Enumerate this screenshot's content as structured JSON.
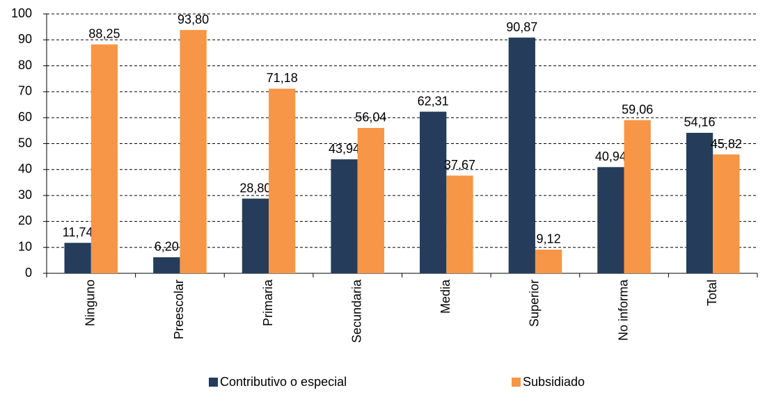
{
  "chart_data": {
    "type": "bar",
    "categories": [
      "Ninguno",
      "Preescolar",
      "Primaria",
      "Secundaria",
      "Media",
      "Superior",
      "No informa",
      "Total"
    ],
    "series": [
      {
        "name": "Contributivo o especial",
        "color": "#253d5b",
        "values": [
          11.74,
          6.2,
          28.8,
          43.94,
          62.31,
          90.87,
          40.94,
          54.16
        ],
        "value_labels": [
          "11,74",
          "6,20",
          "28,80",
          "43,94",
          "62,31",
          "90,87",
          "40,94",
          "54,16"
        ]
      },
      {
        "name": "Subsidiado",
        "color": "#f79646",
        "values": [
          88.25,
          93.8,
          71.18,
          56.04,
          37.67,
          9.12,
          59.06,
          45.82
        ],
        "value_labels": [
          "88,25",
          "93,80",
          "71,18",
          "56,04",
          "37,67",
          "9,12",
          "59,06",
          "45,82"
        ]
      }
    ],
    "ylim": [
      0,
      100
    ],
    "yticks": [
      0,
      10,
      20,
      30,
      40,
      50,
      60,
      70,
      80,
      90,
      100
    ],
    "grid": true
  }
}
